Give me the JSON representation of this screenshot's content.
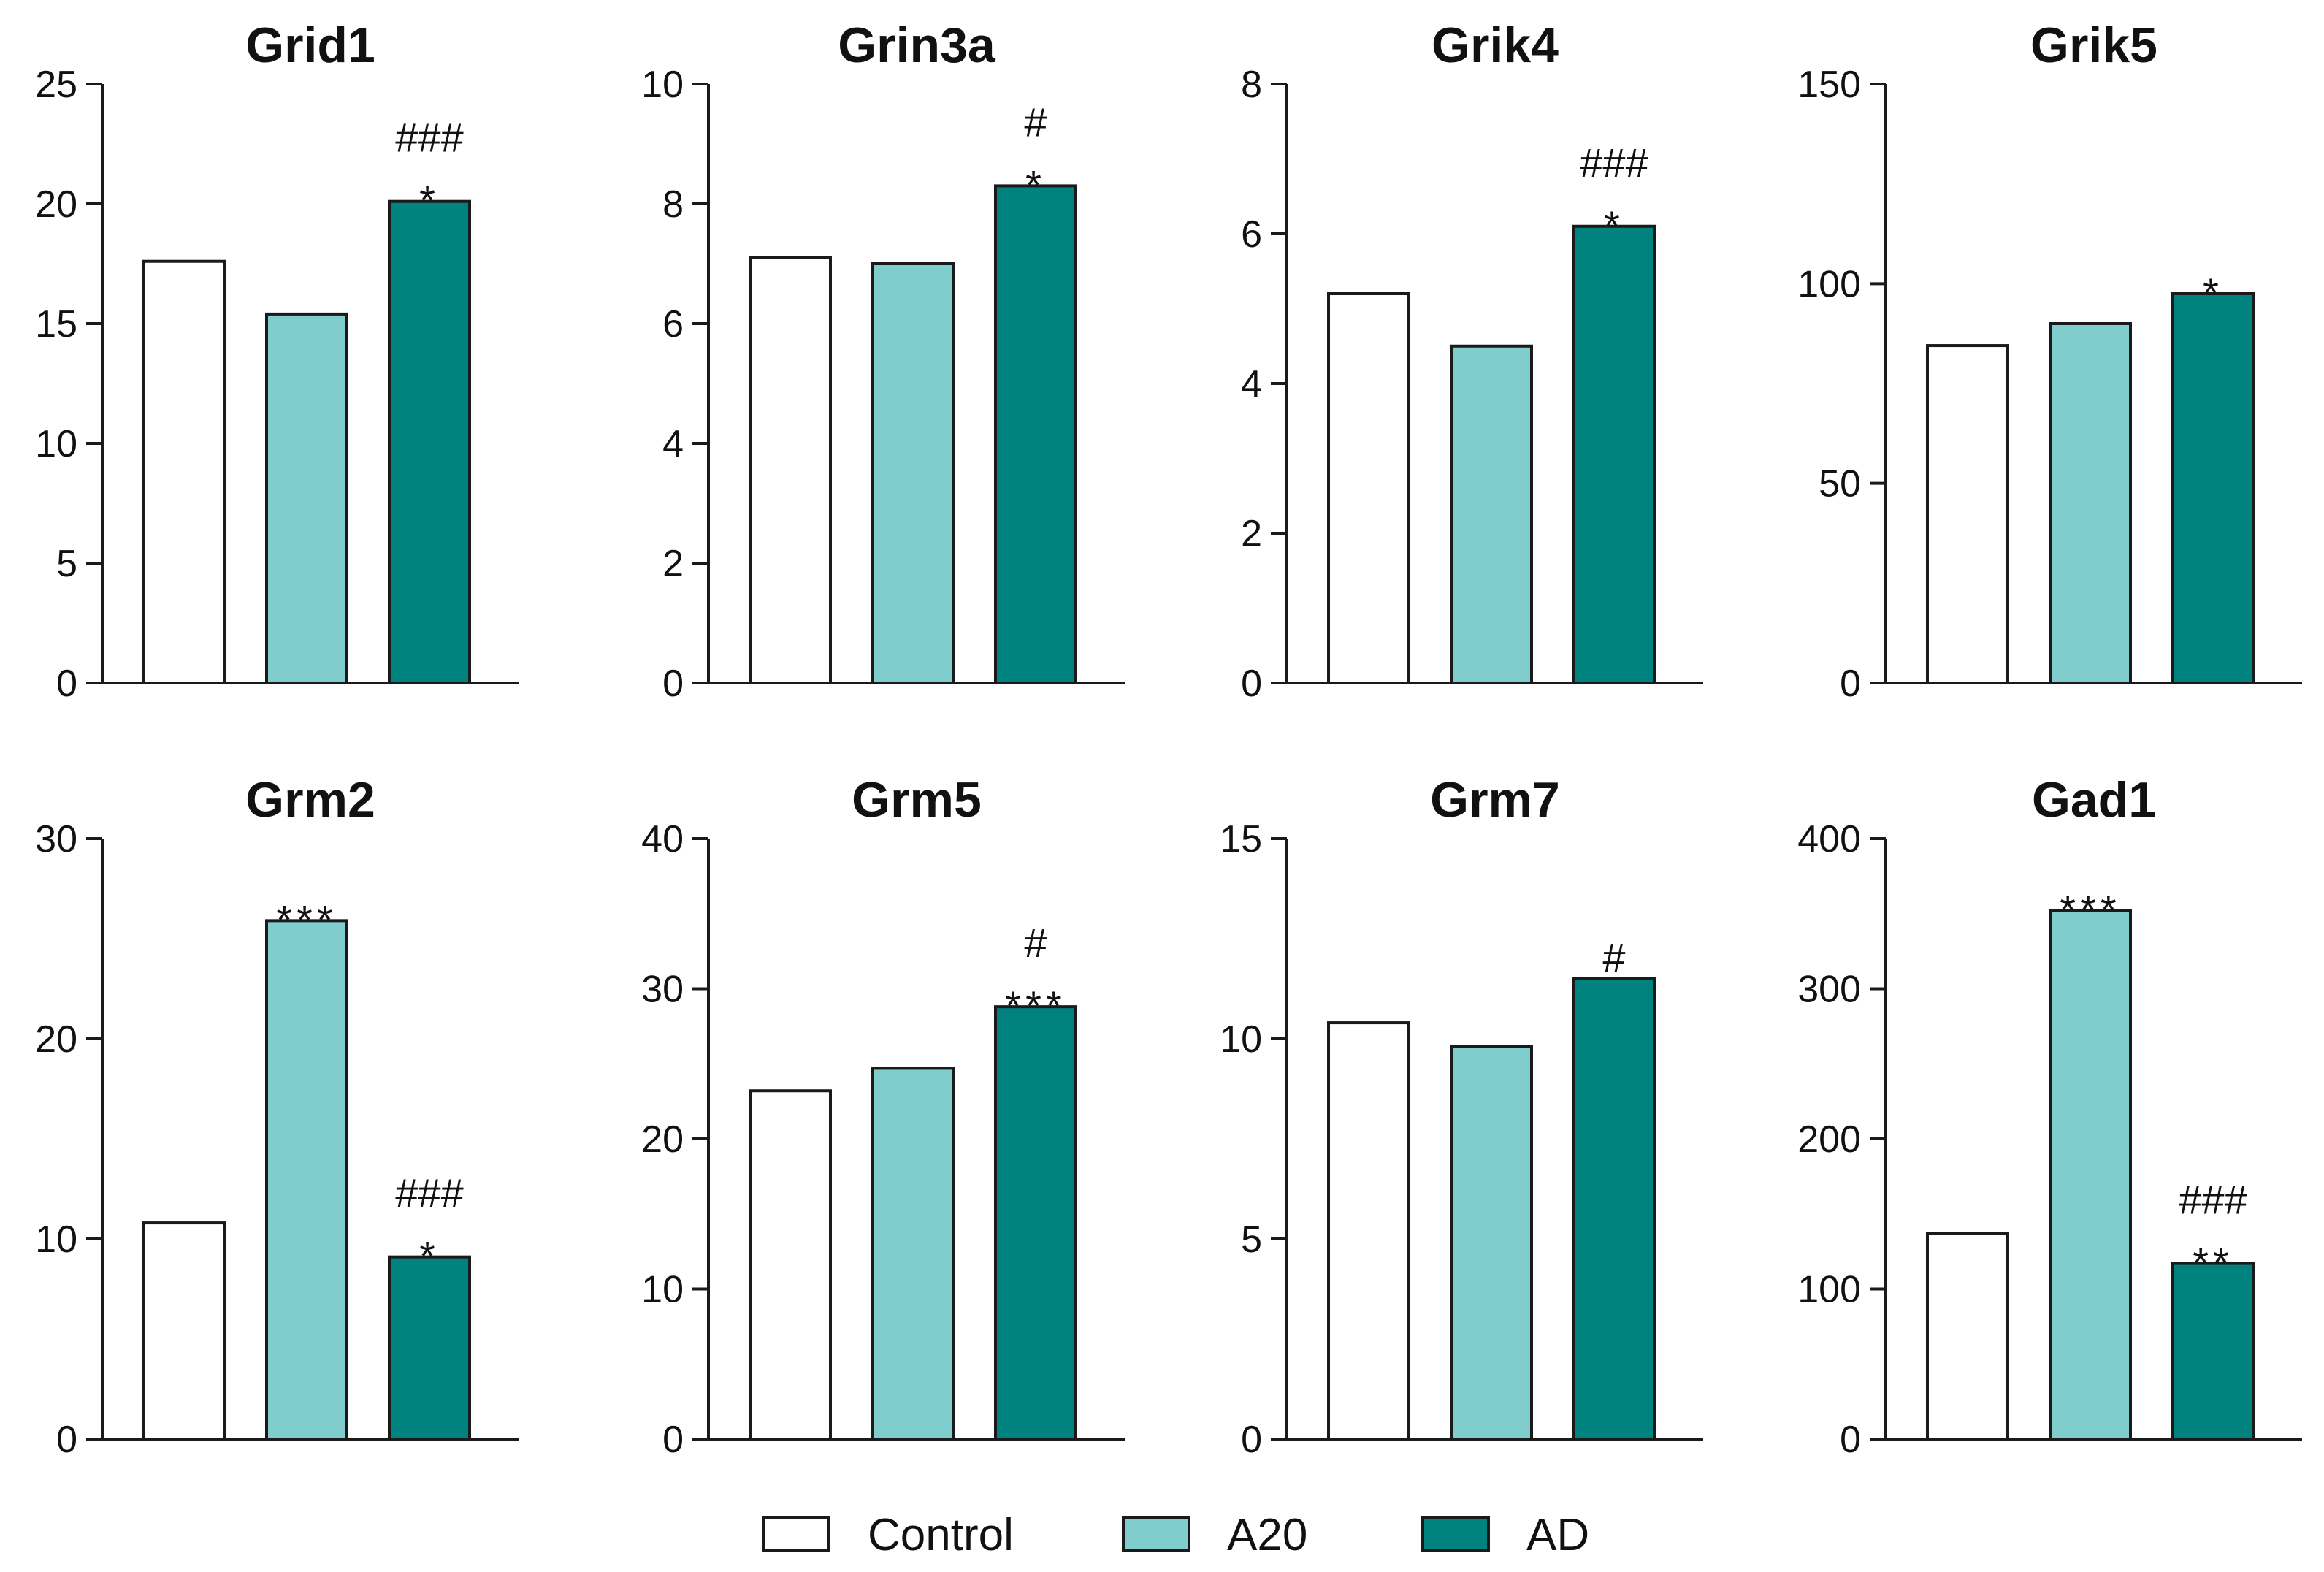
{
  "colors": {
    "Control": "#ffffff",
    "A20": "#80cdcd",
    "AD": "#00827f",
    "stroke": "#1a1a1a"
  },
  "legend": [
    {
      "name": "Control"
    },
    {
      "name": "A20"
    },
    {
      "name": "AD"
    }
  ],
  "chart_data": [
    {
      "type": "bar",
      "title": "Grid1",
      "categories": [
        "Control",
        "A20",
        "AD"
      ],
      "values": [
        17.6,
        15.4,
        20.1
      ],
      "ylim": [
        0,
        25
      ],
      "yticks": [
        0,
        5,
        10,
        15,
        20,
        25
      ],
      "annotations": [
        "",
        "",
        "###\n*"
      ]
    },
    {
      "type": "bar",
      "title": "Grin3a",
      "categories": [
        "Control",
        "A20",
        "AD"
      ],
      "values": [
        7.1,
        7.0,
        8.3
      ],
      "ylim": [
        0,
        10
      ],
      "yticks": [
        0,
        2,
        4,
        6,
        8,
        10
      ],
      "annotations": [
        "",
        "",
        "#\n*"
      ]
    },
    {
      "type": "bar",
      "title": "Grik4",
      "categories": [
        "Control",
        "A20",
        "AD"
      ],
      "values": [
        5.2,
        4.5,
        6.1
      ],
      "ylim": [
        0,
        8
      ],
      "yticks": [
        0,
        2,
        4,
        6,
        8
      ],
      "annotations": [
        "",
        "",
        "###\n*"
      ]
    },
    {
      "type": "bar",
      "title": "Grik5",
      "categories": [
        "Control",
        "A20",
        "AD"
      ],
      "values": [
        84.5,
        90.0,
        97.5
      ],
      "ylim": [
        0,
        150
      ],
      "yticks": [
        0,
        50,
        100,
        150
      ],
      "annotations": [
        "",
        "",
        "*"
      ]
    },
    {
      "type": "bar",
      "title": "Grm2",
      "categories": [
        "Control",
        "A20",
        "AD"
      ],
      "values": [
        10.8,
        25.9,
        9.1
      ],
      "ylim": [
        0,
        30
      ],
      "yticks": [
        0,
        10,
        20,
        30
      ],
      "annotations": [
        "",
        "***",
        "###\n*"
      ]
    },
    {
      "type": "bar",
      "title": "Grm5",
      "categories": [
        "Control",
        "A20",
        "AD"
      ],
      "values": [
        23.2,
        24.7,
        28.8
      ],
      "ylim": [
        0,
        40
      ],
      "yticks": [
        0,
        10,
        20,
        30,
        40
      ],
      "annotations": [
        "",
        "",
        "#\n***"
      ]
    },
    {
      "type": "bar",
      "title": "Grm7",
      "categories": [
        "Control",
        "A20",
        "AD"
      ],
      "values": [
        10.4,
        9.8,
        11.5
      ],
      "ylim": [
        0,
        15
      ],
      "yticks": [
        0,
        5,
        10,
        15
      ],
      "annotations": [
        "",
        "",
        "#"
      ]
    },
    {
      "type": "bar",
      "title": "Gad1",
      "categories": [
        "Control",
        "A20",
        "AD"
      ],
      "values": [
        137,
        352,
        117
      ],
      "ylim": [
        0,
        400
      ],
      "yticks": [
        0,
        100,
        200,
        300,
        400
      ],
      "annotations": [
        "",
        "***",
        "###\n**"
      ]
    }
  ]
}
